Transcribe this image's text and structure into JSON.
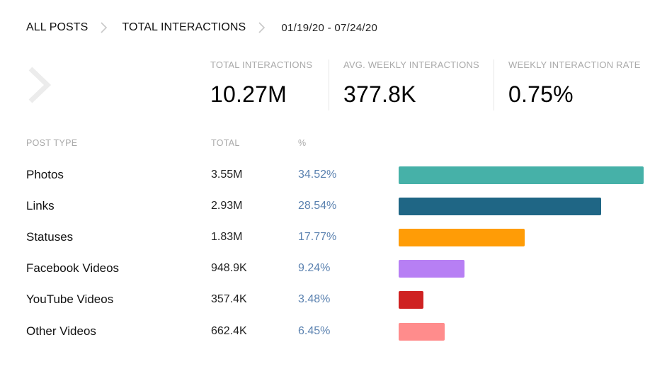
{
  "breadcrumb": {
    "items": [
      "ALL POSTS",
      "TOTAL INTERACTIONS"
    ],
    "date_range": "01/19/20 - 07/24/20"
  },
  "metrics": [
    {
      "label": "TOTAL INTERACTIONS",
      "value": "10.27M"
    },
    {
      "label": "AVG. WEEKLY INTERACTIONS",
      "value": "377.8K"
    },
    {
      "label": "WEEKLY INTERACTION RATE",
      "value": "0.75%"
    }
  ],
  "table": {
    "headers": {
      "type": "POST TYPE",
      "total": "TOTAL",
      "pct": "%"
    },
    "rows": [
      {
        "type": "Photos",
        "total": "3.55M",
        "pct": "34.52%",
        "pct_value": 34.52,
        "color": "#46b1a8"
      },
      {
        "type": "Links",
        "total": "2.93M",
        "pct": "28.54%",
        "pct_value": 28.54,
        "color": "#1f6685"
      },
      {
        "type": "Statuses",
        "total": "1.83M",
        "pct": "17.77%",
        "pct_value": 17.77,
        "color": "#ff9c06"
      },
      {
        "type": "Facebook Videos",
        "total": "948.9K",
        "pct": "9.24%",
        "pct_value": 9.24,
        "color": "#b77ff4"
      },
      {
        "type": "YouTube Videos",
        "total": "357.4K",
        "pct": "3.48%",
        "pct_value": 3.48,
        "color": "#cf2222"
      },
      {
        "type": "Other Videos",
        "total": "662.4K",
        "pct": "6.45%",
        "pct_value": 6.45,
        "color": "#ff8c8c"
      }
    ]
  }
}
